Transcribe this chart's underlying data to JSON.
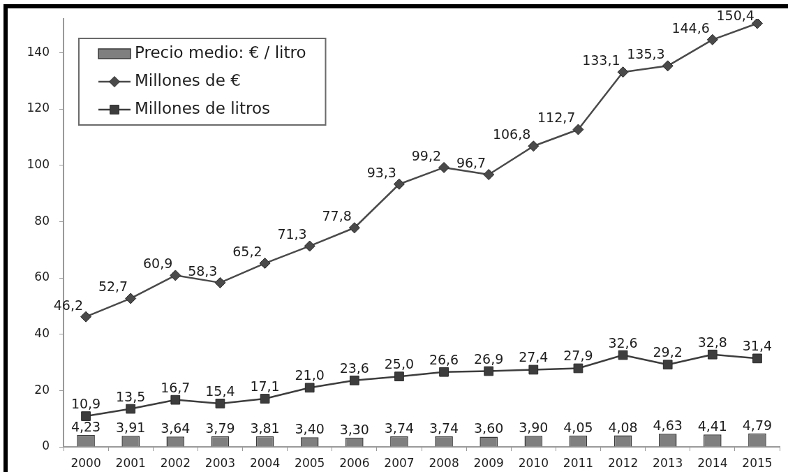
{
  "chart_data": {
    "type": "bar",
    "categories": [
      "2000",
      "2001",
      "2002",
      "2003",
      "2004",
      "2005",
      "2006",
      "2007",
      "2008",
      "2009",
      "2010",
      "2011",
      "2012",
      "2013",
      "2014",
      "2015"
    ],
    "series": [
      {
        "name": "Precio medio: € / litro",
        "color": "#7f7f7f",
        "values": [
          4.23,
          3.91,
          3.64,
          3.79,
          3.81,
          3.4,
          3.3,
          3.74,
          3.74,
          3.6,
          3.9,
          4.05,
          4.08,
          4.63,
          4.41,
          4.79
        ],
        "value_labels": [
          "4,23",
          "3,91",
          "3,64",
          "3,79",
          "3,81",
          "3,40",
          "3,30",
          "3,74",
          "3,74",
          "3,60",
          "3,90",
          "4,05",
          "4,08",
          "4,63",
          "4,41",
          "4,79"
        ]
      },
      {
        "name": "Millones de €",
        "type": "line",
        "color": "#4a4a4a",
        "marker": "diamond",
        "values": [
          46.2,
          52.7,
          60.9,
          58.3,
          65.2,
          71.3,
          77.8,
          93.3,
          99.2,
          96.7,
          106.8,
          112.7,
          133.1,
          135.3,
          144.6,
          150.4
        ],
        "value_labels": [
          "46,2",
          "52,7",
          "60,9",
          "58,3",
          "65,2",
          "71,3",
          "77,8",
          "93,3",
          "99,2",
          "96,7",
          "106,8",
          "112,7",
          "133,1",
          "135,3",
          "144,6",
          "150,4"
        ]
      },
      {
        "name": "Millones de litros",
        "type": "line",
        "color": "#3d3d3d",
        "marker": "square",
        "values": [
          10.9,
          13.5,
          16.7,
          15.4,
          17.1,
          21.0,
          23.6,
          25.0,
          26.6,
          26.9,
          27.4,
          27.9,
          32.6,
          29.2,
          32.8,
          31.4
        ],
        "value_labels": [
          "10,9",
          "13,5",
          "16,7",
          "15,4",
          "17,1",
          "21,0",
          "23,6",
          "25,0",
          "26,6",
          "26,9",
          "27,4",
          "27,9",
          "32,6",
          "29,2",
          "32,8",
          "31,4"
        ]
      }
    ],
    "ylim": [
      0,
      152
    ],
    "yticks": [
      0,
      20,
      40,
      60,
      80,
      100,
      120,
      140
    ],
    "legend": "top left"
  }
}
